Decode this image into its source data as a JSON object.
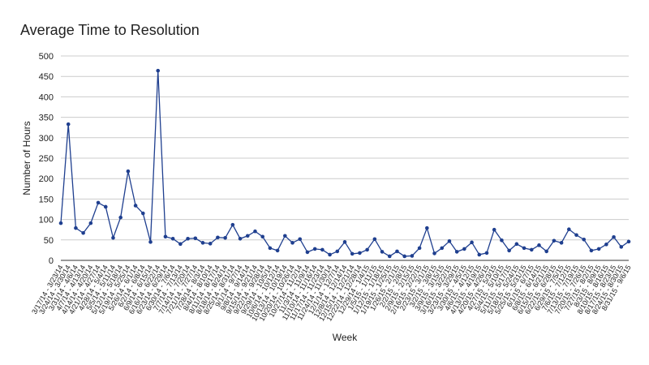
{
  "chart_data": {
    "type": "line",
    "title": "Average Time to Resolution",
    "x_label": "Week",
    "y_label": "Number of Hours",
    "categories": [
      "3/17/14 - 3/23/14",
      "3/24/14 - 3/30/14",
      "3/31/14 - 4/6/14",
      "4/7/14 - 4/13/14",
      "4/14/14 - 4/20/14",
      "4/21/14 - 4/27/14",
      "4/28/14 - 5/4/14",
      "5/5/14 - 5/11/14",
      "5/12/14 - 5/18/14",
      "5/19/14 - 5/25/14",
      "5/26/14 - 6/1/14",
      "6/2/14 - 6/8/14",
      "6/9/14 - 6/15/14",
      "6/16/14 - 6/22/14",
      "6/23/14 - 6/29/14",
      "6/30/14 - 7/6/14",
      "7/7/14 - 7/13/14",
      "7/14/14 - 7/20/14",
      "7/21/14 - 7/27/14",
      "7/28/14 - 8/3/14",
      "8/4/14 - 8/10/14",
      "8/11/14 - 8/17/14",
      "8/18/14 - 8/24/14",
      "8/25/14 - 8/31/14",
      "9/1/14 - 9/7/14",
      "9/8/14 - 9/14/14",
      "9/15/14 - 9/21/14",
      "9/22/14 - 9/28/14",
      "9/29/14 - 10/5/14",
      "10/6/14 - 10/12/14",
      "10/13/14 - 10/19/14",
      "10/20/14 - 10/26/14",
      "10/27/14 - 11/2/14",
      "11/3/14 - 11/9/14",
      "11/10/14 - 11/16/14",
      "11/17/14 - 11/23/14",
      "11/24/14 - 11/30/14",
      "12/1/14 - 12/7/14",
      "12/8/14 - 12/14/14",
      "12/15/14 - 12/21/14",
      "12/22/14 - 12/28/14",
      "12/29/14 - 1/4/15",
      "1/5/15 - 1/11/15",
      "1/12/15 - 1/18/15",
      "1/19/15 - 1/25/15",
      "1/26/15 - 2/1/15",
      "2/2/15 - 2/8/15",
      "2/9/15 - 2/15/15",
      "2/16/15 - 2/22/15",
      "2/23/15 - 3/1/15",
      "3/2/15 - 3/8/15",
      "3/9/15 - 3/15/15",
      "3/16/15 - 3/22/15",
      "3/23/15 - 3/29/15",
      "3/30/15 - 4/5/15",
      "4/6/15 - 4/12/15",
      "4/13/15 - 4/19/15",
      "4/20/15 - 4/26/15",
      "4/27/15 - 5/3/15",
      "5/4/15 - 5/10/15",
      "5/11/15 - 5/17/15",
      "5/18/15 - 5/24/15",
      "5/25/15 - 5/31/15",
      "6/1/15 - 6/7/15",
      "6/8/15 - 6/14/15",
      "6/15/15 - 6/21/15",
      "6/22/15 - 6/28/15",
      "6/29/15 - 7/5/15",
      "7/6/15 - 7/12/15",
      "7/13/15 - 7/19/15",
      "7/20/15 - 7/26/15",
      "7/27/15 - 8/2/15",
      "8/3/15 - 8/9/15",
      "8/10/15 - 8/16/15",
      "8/17/15 - 8/23/15",
      "8/24/15 - 8/30/15",
      "8/31/15 - 9/6/15"
    ],
    "series": [
      {
        "name": "Number of Hours",
        "color": "#1f3f8f",
        "values": [
          91,
          333,
          79,
          67,
          91,
          141,
          131,
          55,
          105,
          218,
          134,
          115,
          45,
          464,
          58,
          53,
          40,
          53,
          54,
          43,
          41,
          56,
          55,
          87,
          53,
          60,
          71,
          58,
          30,
          24,
          60,
          43,
          52,
          20,
          28,
          26,
          14,
          22,
          45,
          16,
          18,
          26,
          52,
          21,
          10,
          22,
          10,
          11,
          30,
          79,
          17,
          30,
          47,
          21,
          28,
          44,
          14,
          18,
          75,
          49,
          24,
          40,
          30,
          26,
          37,
          22,
          48,
          43,
          76,
          62,
          51,
          24,
          28,
          39,
          57,
          33,
          46
        ]
      }
    ],
    "ylim": [
      0,
      500
    ],
    "yticks": [
      0,
      50,
      100,
      150,
      200,
      250,
      300,
      350,
      400,
      450,
      500
    ],
    "grid": true
  }
}
